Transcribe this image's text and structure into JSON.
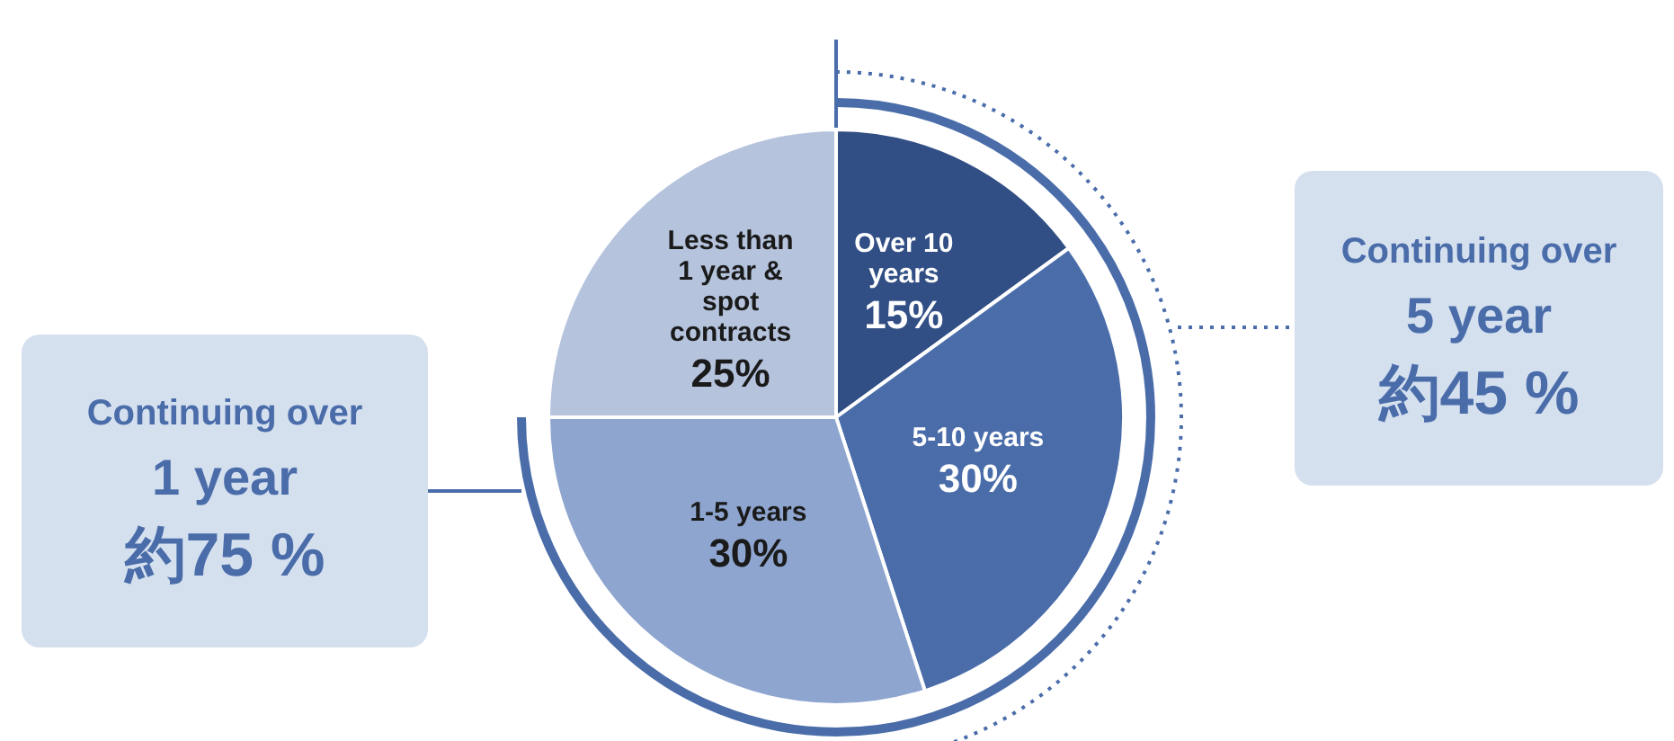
{
  "chart_data": {
    "type": "pie",
    "categories": [
      "Over 10 years",
      "5-10 years",
      "1-5 years",
      "Less than 1 year & spot contracts"
    ],
    "values": [
      15,
      30,
      30,
      25
    ],
    "value_labels": [
      "15%",
      "30%",
      "30%",
      "25%"
    ],
    "colors": [
      "#324f85",
      "#4a6daa",
      "#8ea5cf",
      "#b5c3dd"
    ],
    "annotations": [
      "Continuing over\n1 year\n約75 %",
      "Continuing over\n5 year\n約45 %"
    ],
    "legend": false
  }
}
